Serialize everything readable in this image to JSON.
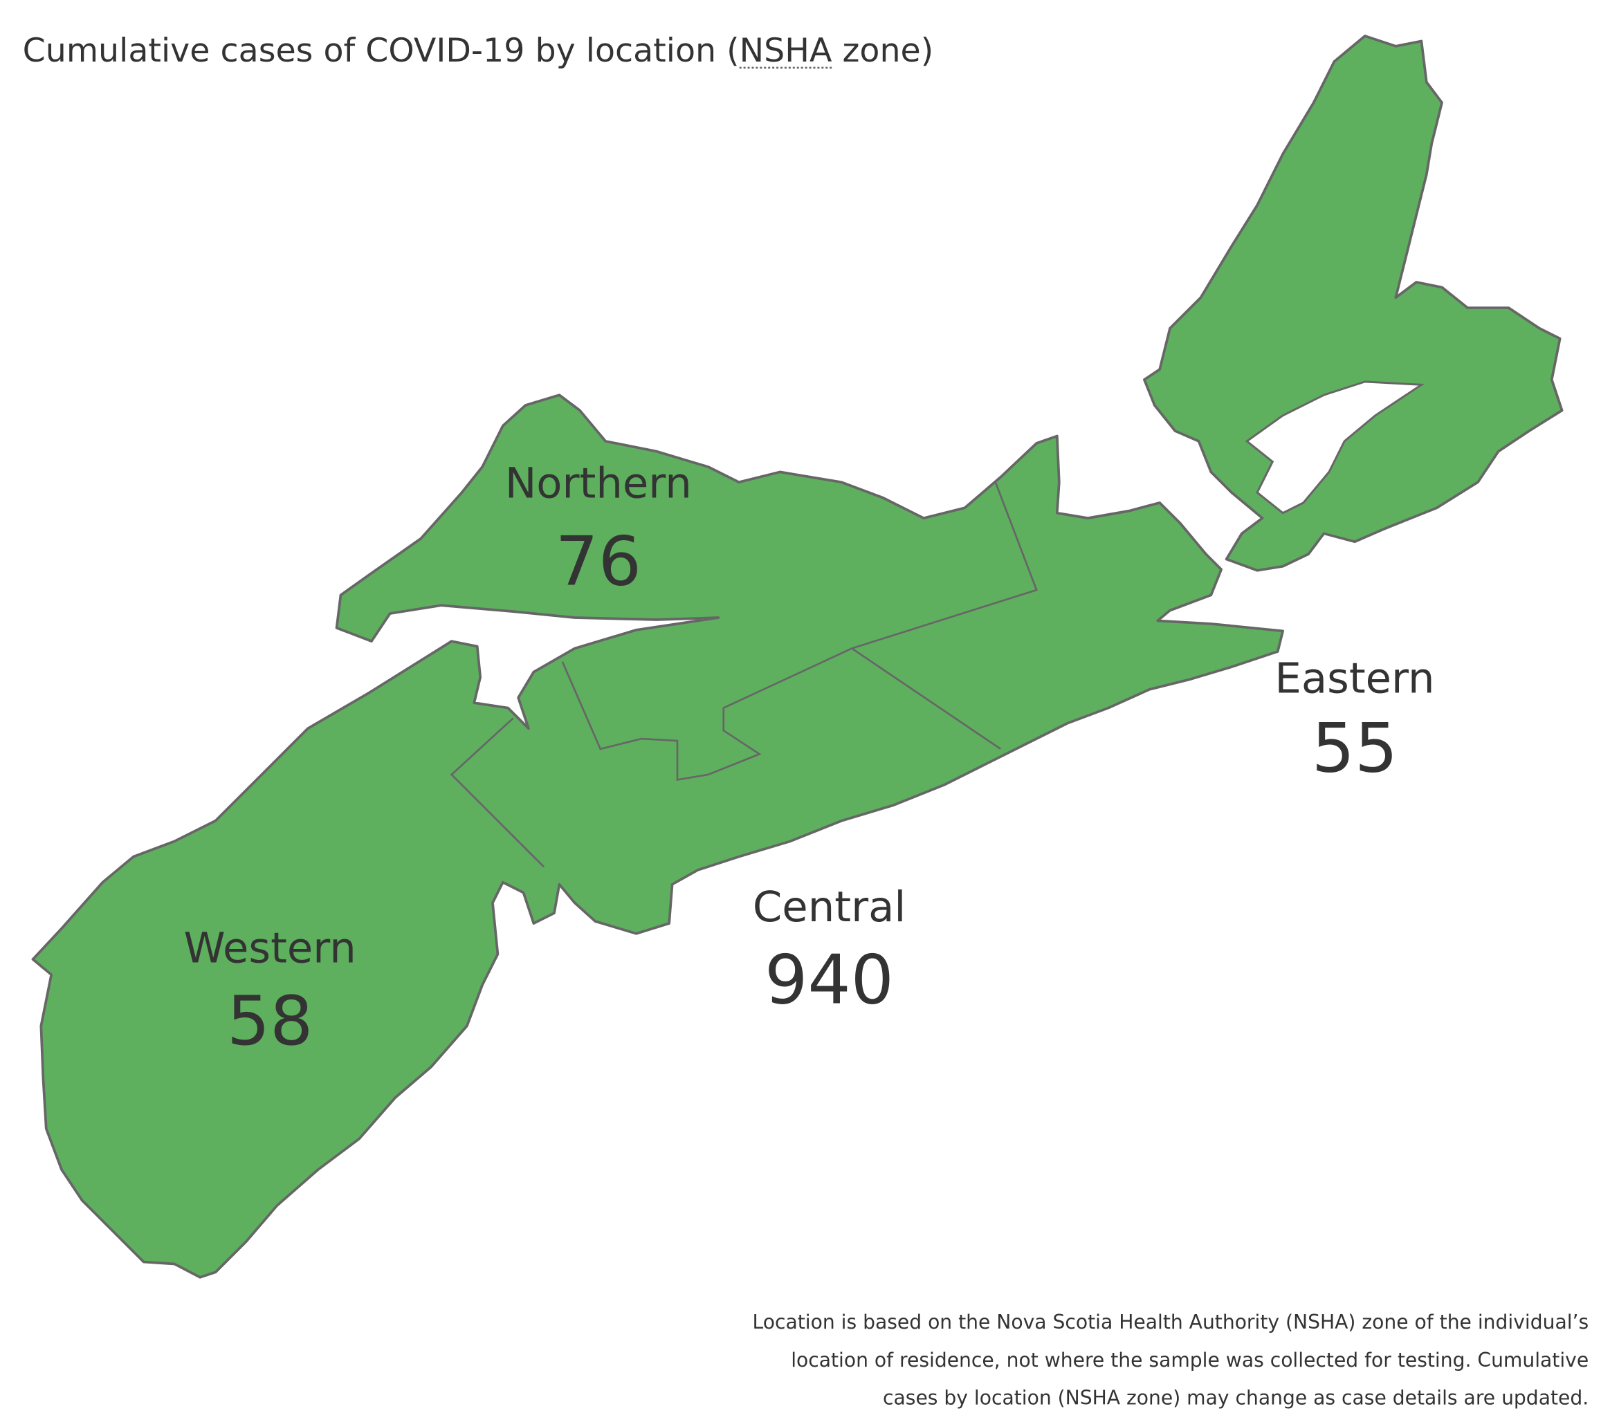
{
  "map": {
    "title": {
      "prefix": "Cumulative cases of COVID-19 by location (",
      "abbr": "NSHA",
      "suffix": " zone)"
    },
    "zones": [
      {
        "name": "Northern",
        "value": 76
      },
      {
        "name": "Eastern",
        "value": 55
      },
      {
        "name": "Central",
        "value": 940
      },
      {
        "name": "Western",
        "value": 58
      }
    ],
    "note": [
      "Location is based on the Nova Scotia Health Authority (NSHA) zone of the individual’s",
      "location of residence, not where the sample was collected for testing. Cumulative",
      "cases by location (NSHA zone) may change as case details are updated."
    ]
  }
}
